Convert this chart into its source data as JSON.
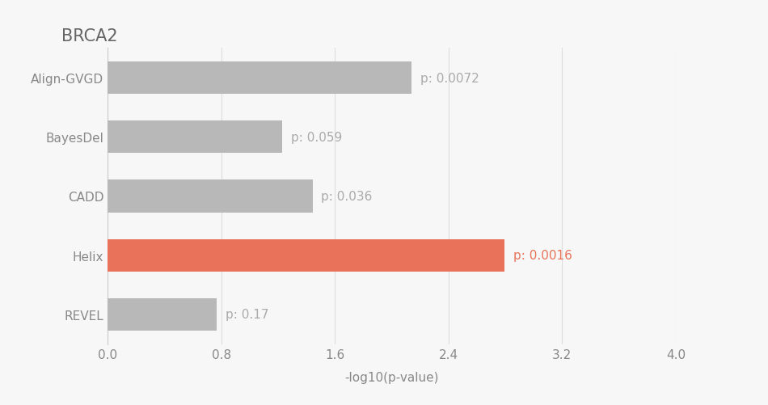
{
  "title": "BRCA2",
  "xlabel": "-log10(p-value)",
  "categories": [
    "Align-GVGD",
    "BayesDel",
    "CADD",
    "Helix",
    "REVEL"
  ],
  "values": [
    2.142,
    1.229,
    1.444,
    2.796,
    0.77
  ],
  "p_labels": [
    "p: 0.0072",
    "p: 0.059",
    "p: 0.036",
    "p: 0.0016",
    "p: 0.17"
  ],
  "bar_colors": [
    "#b8b8b8",
    "#b8b8b8",
    "#b8b8b8",
    "#e8735a",
    "#b8b8b8"
  ],
  "p_label_colors": [
    "#aaaaaa",
    "#aaaaaa",
    "#aaaaaa",
    "#e8735a",
    "#aaaaaa"
  ],
  "xlim": [
    0,
    4.0
  ],
  "xticks": [
    0.0,
    0.8,
    1.6,
    2.4,
    3.2,
    4.0
  ],
  "background_color": "#f7f7f7",
  "title_fontsize": 15,
  "label_fontsize": 11,
  "tick_fontsize": 11,
  "xlabel_fontsize": 11
}
